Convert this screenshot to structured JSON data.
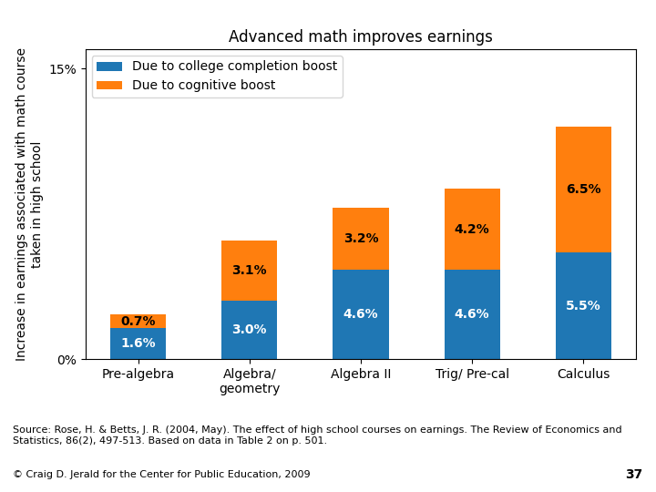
{
  "chart_data": {
    "type": "bar",
    "stacked": true,
    "title": "Advanced math improves earnings",
    "ylabel": "Increase in earnings associated with math course\ntaken in high school",
    "categories": [
      "Pre-algebra",
      "Algebra/\ngeometry",
      "Algebra II",
      "Trig/ Pre-cal",
      "Calculus"
    ],
    "series": [
      {
        "name": "Due to college completion boost",
        "values": [
          1.6,
          3.0,
          4.6,
          4.6,
          5.5
        ],
        "value_labels": [
          "1.6%",
          "3.0%",
          "4.6%",
          "4.6%",
          "5.5%"
        ]
      },
      {
        "name": "Due to cognitive boost",
        "values": [
          0.7,
          3.1,
          3.2,
          4.2,
          6.5
        ],
        "value_labels": [
          "0.7%",
          "3.1%",
          "3.2%",
          "4.2%",
          "6.5%"
        ]
      }
    ],
    "ylim": [
      0,
      16
    ],
    "yticks": [
      {
        "value": 0,
        "label": "0%"
      },
      {
        "value": 15,
        "label": "15%"
      }
    ],
    "data_labels": true,
    "grid": false,
    "legend": "upper left",
    "annotations": [
      "Source: Rose, H. & Betts, J. R. (2004, May). The effect of high school courses on earnings. The Review of Economics and Statistics, 86(2), 497-513. Based on data in Table 2 on p. 501.",
      "© Craig D. Jerald for the Center for Public Education, 2009",
      "37"
    ]
  }
}
